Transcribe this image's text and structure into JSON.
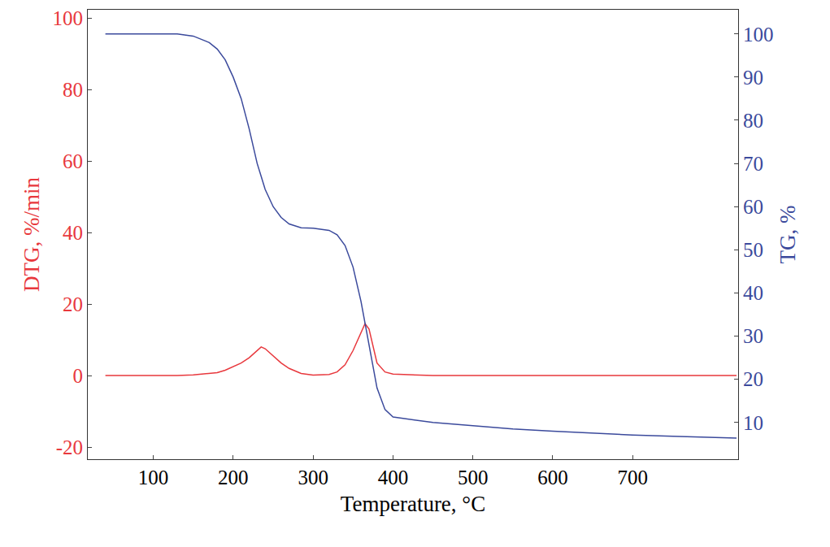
{
  "chart_data": {
    "type": "line",
    "x_label": "Temperature, °C",
    "y_label": "DTG, %/min",
    "y2_label": "TG, %",
    "x": [
      40,
      100,
      130,
      150,
      170,
      180,
      190,
      200,
      210,
      220,
      230,
      235,
      240,
      250,
      260,
      270,
      280,
      285,
      300,
      320,
      330,
      340,
      350,
      360,
      365,
      370,
      375,
      380,
      390,
      400,
      450,
      500,
      550,
      600,
      650,
      700,
      750,
      800,
      830
    ],
    "series": [
      {
        "name": "DTG",
        "color": "#e8383d",
        "axis": "y",
        "values": [
          0,
          0,
          0,
          0.2,
          0.5,
          0.8,
          1.5,
          2.5,
          3.5,
          5,
          7,
          8,
          7.5,
          5.5,
          3.5,
          2,
          1,
          0.6,
          0.1,
          0.3,
          1,
          3,
          7,
          12,
          14.5,
          13,
          8,
          3.5,
          1,
          0.4,
          0,
          0,
          0,
          0,
          0,
          0,
          0,
          0,
          0
        ]
      },
      {
        "name": "TG",
        "color": "#3b4a9c",
        "axis": "y2",
        "values": [
          100,
          100,
          100,
          99.5,
          98,
          96.5,
          94,
          90,
          85,
          78,
          70,
          67,
          64,
          60,
          57.5,
          56,
          55.3,
          55.1,
          55,
          54.5,
          53.5,
          51,
          46,
          38,
          33,
          28,
          23,
          18,
          13,
          11.3,
          10,
          9.2,
          8.5,
          8,
          7.5,
          7.1,
          6.8,
          6.5,
          6.4
        ]
      }
    ],
    "xlim": [
      18,
      832
    ],
    "xticks": [
      100,
      200,
      300,
      400,
      500,
      600,
      700
    ],
    "ylim": [
      -23.4,
      102.3
    ],
    "yticks": [
      -20,
      0,
      20,
      40,
      60,
      80,
      100
    ],
    "y2lim": [
      1.5,
      105.6
    ],
    "y2ticks": [
      10,
      20,
      30,
      40,
      50,
      60,
      70,
      80,
      90,
      100
    ],
    "grid": false
  }
}
